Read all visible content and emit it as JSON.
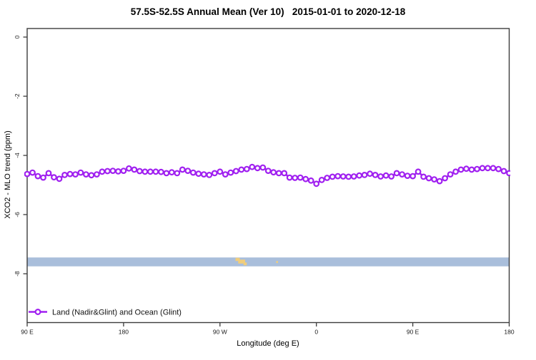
{
  "title": "57.5S-52.5S Annual Mean (Ver 10)   2015-01-01 to 2020-12-18",
  "chart_data": {
    "type": "line",
    "title": "57.5S-52.5S Annual Mean (Ver 10)   2015-01-01 to 2020-12-18",
    "xlabel": "Longitude (deg E)",
    "ylabel": "XCO2 - MLO trend (ppm)",
    "xlim": [
      90,
      540
    ],
    "ylim": [
      -9.65,
      0.29
    ],
    "grid": false,
    "legend_position": "bottom-left",
    "x_axis": {
      "tick_values": [
        90,
        180,
        270,
        360,
        450,
        540
      ],
      "tick_labels": [
        "90 E",
        "180",
        "90 W",
        "0",
        "90 E",
        "180"
      ]
    },
    "y_axis": {
      "tick_values": [
        0,
        -2,
        -4,
        -6,
        -8
      ],
      "tick_labels": [
        "0",
        "-2",
        "-4",
        "-6",
        "-8"
      ]
    },
    "series": [
      {
        "name": "Land (Nadir&Glint) and Ocean (Glint)",
        "color": "#a020f0",
        "marker": "open-circle",
        "marker_fill": "#ffffff",
        "x": [
          90,
          95,
          100,
          105,
          110,
          115,
          120,
          125,
          130,
          135,
          140,
          145,
          150,
          155,
          160,
          165,
          170,
          175,
          180,
          185,
          190,
          195,
          200,
          205,
          210,
          215,
          220,
          225,
          230,
          235,
          240,
          245,
          250,
          255,
          260,
          265,
          270,
          275,
          280,
          285,
          290,
          295,
          300,
          305,
          310,
          315,
          320,
          325,
          330,
          335,
          340,
          345,
          350,
          355,
          360,
          365,
          370,
          375,
          380,
          385,
          390,
          395,
          400,
          405,
          410,
          415,
          420,
          425,
          430,
          435,
          440,
          445,
          450,
          455,
          460,
          465,
          470,
          475,
          480,
          485,
          490,
          495,
          500,
          505,
          510,
          515,
          520,
          525,
          530,
          535,
          540
        ],
        "values": [
          -4.63,
          -4.58,
          -4.7,
          -4.75,
          -4.6,
          -4.74,
          -4.79,
          -4.66,
          -4.63,
          -4.64,
          -4.58,
          -4.64,
          -4.67,
          -4.64,
          -4.55,
          -4.53,
          -4.52,
          -4.54,
          -4.52,
          -4.44,
          -4.48,
          -4.53,
          -4.55,
          -4.55,
          -4.55,
          -4.56,
          -4.6,
          -4.57,
          -4.6,
          -4.48,
          -4.52,
          -4.58,
          -4.62,
          -4.64,
          -4.66,
          -4.6,
          -4.55,
          -4.64,
          -4.58,
          -4.53,
          -4.48,
          -4.46,
          -4.39,
          -4.43,
          -4.41,
          -4.52,
          -4.57,
          -4.6,
          -4.6,
          -4.75,
          -4.76,
          -4.75,
          -4.8,
          -4.85,
          -4.96,
          -4.83,
          -4.76,
          -4.72,
          -4.7,
          -4.71,
          -4.72,
          -4.71,
          -4.68,
          -4.66,
          -4.62,
          -4.66,
          -4.71,
          -4.68,
          -4.71,
          -4.6,
          -4.64,
          -4.69,
          -4.7,
          -4.55,
          -4.72,
          -4.77,
          -4.81,
          -4.87,
          -4.77,
          -4.64,
          -4.55,
          -4.48,
          -4.45,
          -4.48,
          -4.46,
          -4.43,
          -4.43,
          -4.43,
          -4.46,
          -4.53,
          -4.6
        ]
      }
    ],
    "map_strip": {
      "description": "latitude-band map strip (ocean with land patches)",
      "ocean_color": "#a9bedb",
      "land_color": "#f0cd7c",
      "value_top": -7.45,
      "value_bottom": -7.75,
      "land_patches": [
        {
          "lon": 284.5,
          "width_deg": 4.0,
          "dy": 0.5,
          "h": 4.5
        },
        {
          "lon": 287.0,
          "width_deg": 6.5,
          "dy": 3.0,
          "h": 5.5
        },
        {
          "lon": 292.0,
          "width_deg": 3.0,
          "dy": 7.0,
          "h": 4.0
        },
        {
          "lon": 322.5,
          "width_deg": 1.6,
          "dy": 5.0,
          "h": 2.8
        }
      ]
    }
  },
  "colors": {
    "axis": "#3c3c3c",
    "tick_text": "#1a1a1a",
    "series": "#a020f0",
    "strip_ocean": "#a9bedb",
    "strip_land": "#f0cd7c"
  }
}
